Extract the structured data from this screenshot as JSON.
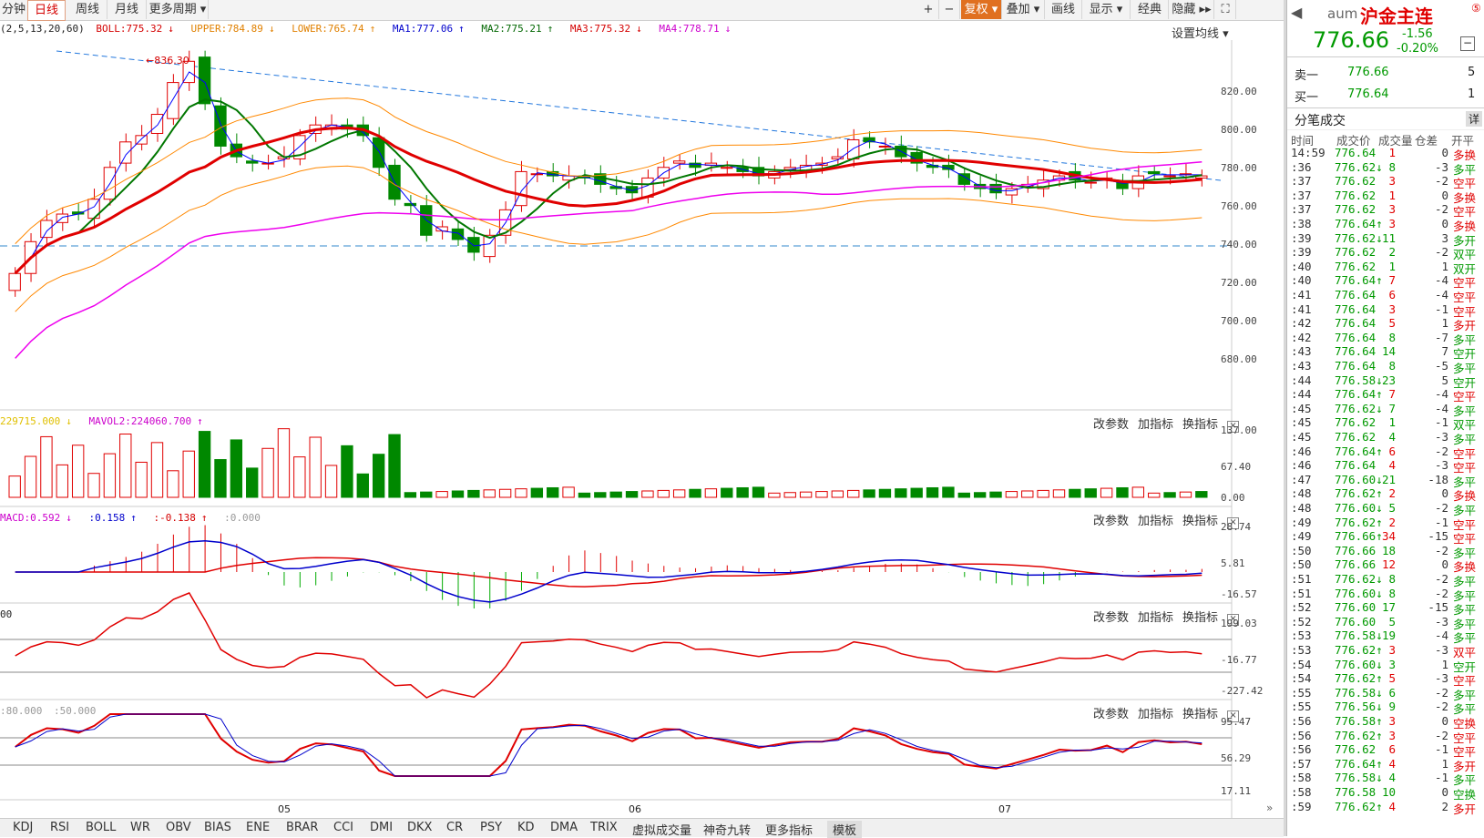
{
  "toolbar": {
    "tabs": [
      "分钟",
      "日线",
      "周线",
      "月线",
      "更多周期"
    ],
    "active_tab": "日线",
    "right_buttons": [
      "+",
      "−",
      "复权",
      "叠加",
      "画线",
      "显示",
      "经典",
      "隐藏"
    ]
  },
  "main_legend": {
    "prefix": "(2,5,13,20,60)",
    "items": [
      {
        "label": "BOLL:775.32",
        "arrow": "↓",
        "color": "#d40000"
      },
      {
        "label": "UPPER:784.89",
        "arrow": "↓",
        "color": "#e08000"
      },
      {
        "label": "LOWER:765.74",
        "arrow": "↑",
        "color": "#e08000"
      },
      {
        "label": "MA1:777.06",
        "arrow": "↑",
        "color": "#0000cc"
      },
      {
        "label": "MA2:775.21",
        "arrow": "↑",
        "color": "#006600"
      },
      {
        "label": "MA3:775.32",
        "arrow": "↓",
        "color": "#d40000"
      },
      {
        "label": "MA4:778.71",
        "arrow": "↓",
        "color": "#cc00cc"
      }
    ],
    "set_ma": "设置均线"
  },
  "price_axis": [
    "820.00",
    "800.00",
    "780.00",
    "760.00",
    "740.00",
    "720.00",
    "700.00",
    "680.00"
  ],
  "high_marker": "836.30",
  "vol_legend": {
    "a": "229715.000",
    "a_arrow": "↓",
    "b": "MAVOL2:224060.700",
    "b_arrow": "↑"
  },
  "vol_axis": [
    "137.00",
    "67.40",
    "0.00"
  ],
  "macd_legend": {
    "a": "MACD:0.592",
    "a_arrow": "↓",
    "b": ":0.158",
    "b_arrow": "↑",
    "c": ":-0.138",
    "c_arrow": "↑",
    "d": ":0.000"
  },
  "macd_axis": [
    "28.74",
    "5.81",
    "-16.57"
  ],
  "cci_legend": {
    "a": "00"
  },
  "cci_axis": [
    "199.03",
    "-16.77",
    "-227.42"
  ],
  "kd_legend": {
    "a": ":80.000",
    "b": ":50.000"
  },
  "kd_axis": [
    "95.47",
    "56.29",
    "17.11"
  ],
  "panel_tools": [
    "改参数",
    "加指标",
    "换指标"
  ],
  "date_labels": [
    "05",
    "06",
    "07"
  ],
  "bottom_tabs": [
    "KDJ",
    "RSI",
    "BOLL",
    "WR",
    "OBV",
    "BIAS",
    "ENE",
    "BRAR",
    "CCI",
    "DMI",
    "DKX",
    "CR",
    "PSY",
    "KD",
    "DMA",
    "TRIX",
    "虚拟成交量",
    "神奇九转",
    "更多指标",
    "模板"
  ],
  "quote": {
    "code": "aum",
    "name": "沪金主连",
    "price": "776.66",
    "change": "-1.56",
    "pct": "-0.20%",
    "sell_label": "卖一",
    "sell_price": "776.66",
    "sell_vol": "5",
    "buy_label": "买一",
    "buy_price": "776.64",
    "buy_vol": "1",
    "ticks_title": "分笔成交",
    "ticks_detail": "详",
    "tick_headers": [
      "时间",
      "成交价",
      "成交量",
      "仓差",
      "开平"
    ]
  },
  "ticks": [
    {
      "t": "14:59",
      "p": "776.64",
      "a": "",
      "v": "1",
      "d": "0",
      "k": "多换",
      "c": "r"
    },
    {
      "t": ":36",
      "p": "776.62",
      "a": "↓",
      "v": "8",
      "d": "-3",
      "k": "多平",
      "c": "g"
    },
    {
      "t": ":37",
      "p": "776.62",
      "a": "",
      "v": "3",
      "d": "-2",
      "k": "空平",
      "c": "r"
    },
    {
      "t": ":37",
      "p": "776.62",
      "a": "",
      "v": "1",
      "d": "0",
      "k": "多换",
      "c": "r"
    },
    {
      "t": ":37",
      "p": "776.62",
      "a": "",
      "v": "3",
      "d": "-2",
      "k": "空平",
      "c": "r"
    },
    {
      "t": ":38",
      "p": "776.64",
      "a": "↑",
      "v": "3",
      "d": "0",
      "k": "多换",
      "c": "r"
    },
    {
      "t": ":39",
      "p": "776.62",
      "a": "↓",
      "v": "11",
      "d": "3",
      "k": "多开",
      "c": "g"
    },
    {
      "t": ":39",
      "p": "776.62",
      "a": "",
      "v": "2",
      "d": "-2",
      "k": "双平",
      "c": "g"
    },
    {
      "t": ":40",
      "p": "776.62",
      "a": "",
      "v": "1",
      "d": "1",
      "k": "双开",
      "c": "g"
    },
    {
      "t": ":40",
      "p": "776.64",
      "a": "↑",
      "v": "7",
      "d": "-4",
      "k": "空平",
      "c": "r"
    },
    {
      "t": ":41",
      "p": "776.64",
      "a": "",
      "v": "6",
      "d": "-4",
      "k": "空平",
      "c": "r"
    },
    {
      "t": ":41",
      "p": "776.64",
      "a": "",
      "v": "3",
      "d": "-1",
      "k": "空平",
      "c": "r"
    },
    {
      "t": ":42",
      "p": "776.64",
      "a": "",
      "v": "5",
      "d": "1",
      "k": "多开",
      "c": "r"
    },
    {
      "t": ":42",
      "p": "776.64",
      "a": "",
      "v": "8",
      "d": "-7",
      "k": "多平",
      "c": "g"
    },
    {
      "t": ":43",
      "p": "776.64",
      "a": "",
      "v": "14",
      "d": "7",
      "k": "空开",
      "c": "g"
    },
    {
      "t": ":43",
      "p": "776.64",
      "a": "",
      "v": "8",
      "d": "-5",
      "k": "多平",
      "c": "g"
    },
    {
      "t": ":44",
      "p": "776.58",
      "a": "↓",
      "v": "23",
      "d": "5",
      "k": "空开",
      "c": "g"
    },
    {
      "t": ":44",
      "p": "776.64",
      "a": "↑",
      "v": "7",
      "d": "-4",
      "k": "空平",
      "c": "r"
    },
    {
      "t": ":45",
      "p": "776.62",
      "a": "↓",
      "v": "7",
      "d": "-4",
      "k": "多平",
      "c": "g"
    },
    {
      "t": ":45",
      "p": "776.62",
      "a": "",
      "v": "1",
      "d": "-1",
      "k": "双平",
      "c": "g"
    },
    {
      "t": ":45",
      "p": "776.62",
      "a": "",
      "v": "4",
      "d": "-3",
      "k": "多平",
      "c": "g"
    },
    {
      "t": ":46",
      "p": "776.64",
      "a": "↑",
      "v": "6",
      "d": "-2",
      "k": "空平",
      "c": "r"
    },
    {
      "t": ":46",
      "p": "776.64",
      "a": "",
      "v": "4",
      "d": "-3",
      "k": "空平",
      "c": "r"
    },
    {
      "t": ":47",
      "p": "776.60",
      "a": "↓",
      "v": "21",
      "d": "-18",
      "k": "多平",
      "c": "g"
    },
    {
      "t": ":48",
      "p": "776.62",
      "a": "↑",
      "v": "2",
      "d": "0",
      "k": "多换",
      "c": "r"
    },
    {
      "t": ":48",
      "p": "776.60",
      "a": "↓",
      "v": "5",
      "d": "-2",
      "k": "多平",
      "c": "g"
    },
    {
      "t": ":49",
      "p": "776.62",
      "a": "↑",
      "v": "2",
      "d": "-1",
      "k": "空平",
      "c": "r"
    },
    {
      "t": ":49",
      "p": "776.66",
      "a": "↑",
      "v": "34",
      "d": "-15",
      "k": "空平",
      "c": "r"
    },
    {
      "t": ":50",
      "p": "776.66",
      "a": "",
      "v": "18",
      "d": "-2",
      "k": "多平",
      "c": "g"
    },
    {
      "t": ":50",
      "p": "776.66",
      "a": "",
      "v": "12",
      "d": "0",
      "k": "多换",
      "c": "r"
    },
    {
      "t": ":51",
      "p": "776.62",
      "a": "↓",
      "v": "8",
      "d": "-2",
      "k": "多平",
      "c": "g"
    },
    {
      "t": ":51",
      "p": "776.60",
      "a": "↓",
      "v": "8",
      "d": "-2",
      "k": "多平",
      "c": "g"
    },
    {
      "t": ":52",
      "p": "776.60",
      "a": "",
      "v": "17",
      "d": "-15",
      "k": "多平",
      "c": "g"
    },
    {
      "t": ":52",
      "p": "776.60",
      "a": "",
      "v": "5",
      "d": "-3",
      "k": "多平",
      "c": "g"
    },
    {
      "t": ":53",
      "p": "776.58",
      "a": "↓",
      "v": "19",
      "d": "-4",
      "k": "多平",
      "c": "g"
    },
    {
      "t": ":53",
      "p": "776.62",
      "a": "↑",
      "v": "3",
      "d": "-3",
      "k": "双平",
      "c": "r"
    },
    {
      "t": ":54",
      "p": "776.60",
      "a": "↓",
      "v": "3",
      "d": "1",
      "k": "空开",
      "c": "g"
    },
    {
      "t": ":54",
      "p": "776.62",
      "a": "↑",
      "v": "5",
      "d": "-3",
      "k": "空平",
      "c": "r"
    },
    {
      "t": ":55",
      "p": "776.58",
      "a": "↓",
      "v": "6",
      "d": "-2",
      "k": "多平",
      "c": "g"
    },
    {
      "t": ":55",
      "p": "776.56",
      "a": "↓",
      "v": "9",
      "d": "-2",
      "k": "多平",
      "c": "g"
    },
    {
      "t": ":56",
      "p": "776.58",
      "a": "↑",
      "v": "3",
      "d": "0",
      "k": "空换",
      "c": "r"
    },
    {
      "t": ":56",
      "p": "776.62",
      "a": "↑",
      "v": "3",
      "d": "-2",
      "k": "空平",
      "c": "r"
    },
    {
      "t": ":56",
      "p": "776.62",
      "a": "",
      "v": "6",
      "d": "-1",
      "k": "空平",
      "c": "r"
    },
    {
      "t": ":57",
      "p": "776.64",
      "a": "↑",
      "v": "4",
      "d": "1",
      "k": "多开",
      "c": "r"
    },
    {
      "t": ":58",
      "p": "776.58",
      "a": "↓",
      "v": "4",
      "d": "-1",
      "k": "多平",
      "c": "g"
    },
    {
      "t": ":58",
      "p": "776.58",
      "a": "",
      "v": "10",
      "d": "0",
      "k": "空换",
      "c": "g"
    },
    {
      "t": ":59",
      "p": "776.62",
      "a": "↑",
      "v": "4",
      "d": "2",
      "k": "多开",
      "c": "r"
    }
  ],
  "chart_data": {
    "type": "candlestick",
    "closes": [
      730,
      745,
      755,
      758,
      758,
      765,
      780,
      792,
      795,
      805,
      820,
      830,
      810,
      790,
      785,
      782,
      782,
      785,
      795,
      800,
      800,
      798,
      795,
      780,
      765,
      762,
      748,
      752,
      746,
      740,
      748,
      760,
      778,
      777,
      776,
      776,
      775,
      772,
      770,
      768,
      775,
      780,
      783,
      780,
      782,
      780,
      778,
      776,
      778,
      780,
      781,
      782,
      785,
      793,
      792,
      790,
      785,
      782,
      780,
      779,
      772,
      770,
      768,
      770,
      772,
      774,
      776,
      774,
      773,
      775,
      770,
      776,
      777,
      776,
      777,
      776
    ],
    "ma_colors": {
      "ma1": "#0000ff",
      "ma2": "#007700",
      "ma3": "#e00000",
      "ma4": "#ee00ee",
      "boll": "#ff8800"
    },
    "ylim": [
      670,
      840
    ],
    "vol_ylim": [
      0,
      137
    ],
    "macd_ylim": [
      -16.57,
      28.74
    ],
    "cci_ylim": [
      -227.42,
      199.03
    ],
    "kd_ylim": [
      17.11,
      95.47
    ]
  }
}
